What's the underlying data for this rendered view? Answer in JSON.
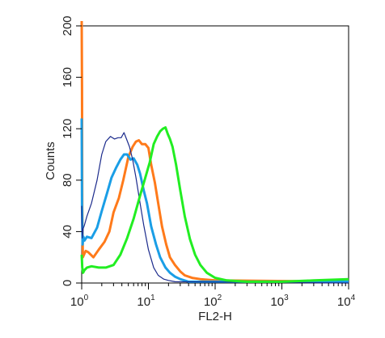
{
  "chart_data": {
    "type": "line",
    "xlabel": "FL2-H",
    "ylabel": "Counts",
    "xscale": "log",
    "xlim": [
      1,
      10000
    ],
    "ylim": [
      0,
      200
    ],
    "grid": false,
    "legend": "none",
    "x_ticks": [
      {
        "value": 1,
        "base": "10",
        "exp": "0"
      },
      {
        "value": 10,
        "base": "10",
        "exp": "1"
      },
      {
        "value": 100,
        "base": "10",
        "exp": "2"
      },
      {
        "value": 1000,
        "base": "10",
        "exp": "3"
      },
      {
        "value": 10000,
        "base": "10",
        "exp": "4"
      }
    ],
    "y_ticks": [
      0,
      40,
      80,
      120,
      160,
      200
    ],
    "series": [
      {
        "color": "#ff7a1a",
        "x": [
          1,
          1.01,
          1.02,
          1.04,
          1.08,
          1.15,
          1.25,
          1.5,
          1.8,
          2.2,
          2.6,
          3.0,
          3.6,
          4.2,
          5.0,
          5.8,
          6.5,
          7.2,
          8.0,
          9.0,
          10.0,
          11.0,
          12.5,
          14.0,
          16.0,
          18.5,
          21.0,
          25.0,
          30.0,
          35.0,
          45.0,
          60.0,
          100.0,
          10000
        ],
        "y": [
          205,
          150,
          60,
          20,
          22,
          25,
          24,
          20,
          26,
          32,
          40,
          55,
          66,
          80,
          98,
          106,
          110,
          111,
          108,
          108,
          105,
          92,
          78,
          62,
          44,
          30,
          20,
          14,
          9,
          6,
          4,
          3,
          2,
          1
        ]
      },
      {
        "color": "#1a9ee6",
        "x": [
          1,
          1.01,
          1.03,
          1.06,
          1.1,
          1.2,
          1.4,
          1.7,
          2.0,
          2.4,
          2.8,
          3.3,
          3.8,
          4.3,
          4.8,
          5.4,
          6.0,
          6.8,
          7.5,
          8.5,
          9.5,
          11.0,
          13.0,
          15.0,
          18.0,
          21.0,
          25.0,
          30.0,
          40.0,
          10000
        ],
        "y": [
          128,
          60,
          30,
          36,
          33,
          36,
          35,
          43,
          56,
          70,
          82,
          90,
          96,
          100,
          100,
          96,
          97,
          92,
          85,
          72,
          62,
          44,
          30,
          20,
          12,
          8,
          5,
          3,
          1,
          1
        ]
      },
      {
        "color": "#1c2b8c",
        "x": [
          1,
          1.02,
          1.05,
          1.1,
          1.2,
          1.4,
          1.7,
          2.0,
          2.3,
          2.7,
          3.1,
          3.5,
          3.9,
          4.3,
          4.7,
          5.2,
          5.8,
          6.5,
          7.5,
          8.5,
          10.0,
          12.0,
          14.0,
          17.0,
          20.0,
          25.0,
          10000
        ],
        "y": [
          60,
          35,
          42,
          45,
          52,
          62,
          80,
          100,
          110,
          114,
          112,
          113,
          113,
          117,
          112,
          106,
          96,
          82,
          62,
          45,
          26,
          12,
          6,
          3,
          2,
          1,
          0
        ]
      },
      {
        "color": "#22ee22",
        "x": [
          1,
          1.02,
          1.05,
          1.1,
          1.2,
          1.4,
          1.8,
          2.3,
          3.0,
          3.8,
          4.8,
          6.0,
          7.5,
          9.0,
          10.5,
          12.0,
          13.5,
          15.0,
          16.5,
          18.0,
          19.5,
          21.0,
          23.0,
          26.0,
          30.0,
          35.0,
          42.0,
          50.0,
          60.0,
          75.0,
          100.0,
          150.0,
          300.0,
          1000.0,
          3000.0,
          10000
        ],
        "y": [
          22,
          12,
          8,
          10,
          12,
          13,
          12,
          12,
          14,
          22,
          35,
          50,
          68,
          82,
          94,
          108,
          114,
          118,
          120,
          121,
          116,
          112,
          106,
          92,
          72,
          52,
          34,
          22,
          14,
          8,
          4,
          2,
          1,
          1,
          2,
          3
        ]
      }
    ]
  }
}
